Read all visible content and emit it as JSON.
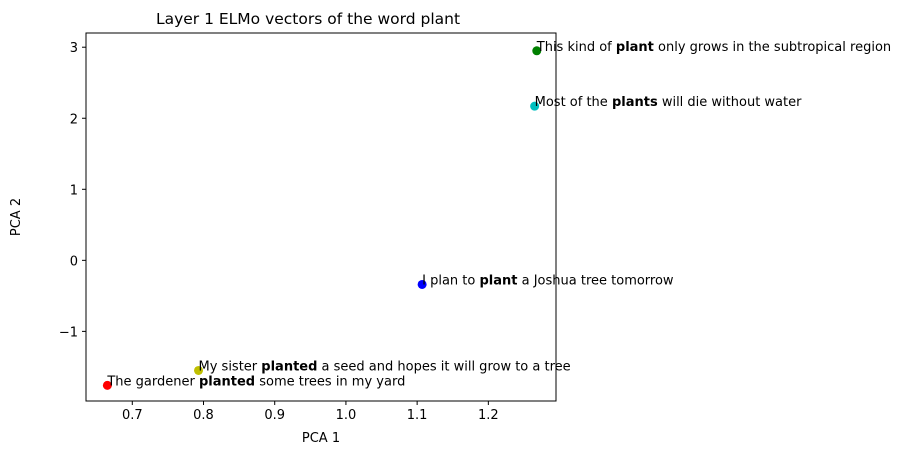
{
  "chart_data": {
    "type": "scatter",
    "title": "Layer 1 ELMo vectors of the word plant",
    "xlabel": "PCA 1",
    "ylabel": "PCA 2",
    "xlim": [
      0.635,
      1.295
    ],
    "ylim": [
      -1.98,
      3.2
    ],
    "x_ticks": [
      0.7,
      0.8,
      0.9,
      1.0,
      1.1,
      1.2
    ],
    "x_tick_labels": [
      "0.7",
      "0.8",
      "0.9",
      "1.0",
      "1.1",
      "1.2"
    ],
    "y_ticks": [
      -1,
      0,
      1,
      2,
      3
    ],
    "y_tick_labels": [
      "−1",
      "0",
      "1",
      "2",
      "3"
    ],
    "grid": false,
    "points": [
      {
        "x": 1.268,
        "y": 2.95,
        "color": "#008000",
        "label_parts": [
          {
            "text": "This kind of ",
            "bold": false
          },
          {
            "text": "plant",
            "bold": true
          },
          {
            "text": " only grows in the subtropical region",
            "bold": false
          }
        ]
      },
      {
        "x": 1.265,
        "y": 2.17,
        "color": "#00bfbf",
        "label_parts": [
          {
            "text": "Most of the ",
            "bold": false
          },
          {
            "text": "plants",
            "bold": true
          },
          {
            "text": " will die without water",
            "bold": false
          }
        ]
      },
      {
        "x": 1.107,
        "y": -0.34,
        "color": "#0000ff",
        "label_parts": [
          {
            "text": "I plan to ",
            "bold": false
          },
          {
            "text": "plant",
            "bold": true
          },
          {
            "text": " a Joshua tree tomorrow",
            "bold": false
          }
        ]
      },
      {
        "x": 0.793,
        "y": -1.55,
        "color": "#bfbf00",
        "label_parts": [
          {
            "text": "My sister ",
            "bold": false
          },
          {
            "text": "planted",
            "bold": true
          },
          {
            "text": " a seed and hopes it will grow to a tree",
            "bold": false
          }
        ]
      },
      {
        "x": 0.665,
        "y": -1.76,
        "color": "#ff0000",
        "label_parts": [
          {
            "text": "The gardener ",
            "bold": false
          },
          {
            "text": "planted",
            "bold": true
          },
          {
            "text": " some trees in my yard",
            "bold": false
          }
        ]
      }
    ]
  }
}
